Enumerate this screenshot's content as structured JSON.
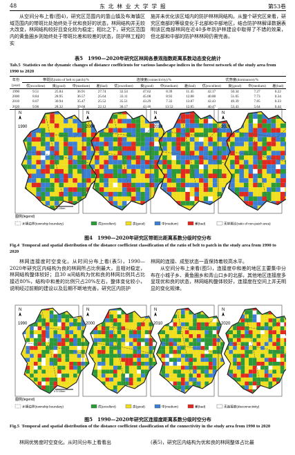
{
  "header": {
    "page": "48",
    "journal": "东 北 林 业 大 学 学 报",
    "volume": "第53卷"
  },
  "text1": {
    "left": "从空间分布上看(图4)，研究区范围内的靠山镇及布海镇区域范围内的带斑比处始终处于优和良好的状态，林网结构并无较大改变，林网结构较好且变化较为稳定；相比之下，研究区范围内的黄鱼圈乡则始终处于带斑比差和较差的状态，防护林工程的实",
    "right": "施并未优化该区域内的防护林林网结构。从整个研究区来看，研究区南部的等级变化于北部和中部地区，结合防护林解译数据表明该区南部林网在近40多年防护林建设中取得了不错的效果，但北部和中部的防护林林网仍需完善。"
  },
  "table": {
    "caption_cn": "表5　1990—2020年研究区林网各景观指数距离系数动态变化统计",
    "caption_en_label": "Tab.5",
    "caption_en": "Statistics on the dynamic changes of distance coefficients for various landscape indices in the forest network of the study area from 1990 to 2020",
    "year_header": [
      "年份",
      "(year)"
    ],
    "groups": [
      "带斑比(ratio of belt to patch)/%",
      "连接度(connectivity)/%",
      "优势度(dominance)/%"
    ],
    "subheaders": [
      "优(excellent)",
      "良(good)",
      "中(medium)",
      "差(bad)",
      "优(excellent)",
      "良(good)",
      "中(medium)",
      "差(bad)",
      "优(excellent)",
      "良(good)",
      "中(medium)",
      "差(bad)"
    ],
    "rows": [
      [
        "1990",
        "9.51",
        "25.84",
        "36.91",
        "27.74",
        "32.54",
        "47.62",
        "8.39",
        "11.45",
        "42.17",
        "50.34",
        "7.27",
        "0.22"
      ],
      [
        "2000",
        "8.84",
        "28.95",
        "36.57",
        "25.64",
        "33.11",
        "45.08",
        "8.93",
        "12.88",
        "40.88",
        "51.05",
        "7.73",
        "0.34"
      ],
      [
        "2010",
        "8.07",
        "30.94",
        "35.47",
        "25.52",
        "35.51",
        "43.29",
        "7.33",
        "13.87",
        "42.43",
        "49.39",
        "7.85",
        "0.33"
      ],
      [
        "2020",
        "9.96",
        "28.32",
        "39.60",
        "22.12",
        "30.17",
        "43.46",
        "13.52",
        "12.85",
        "40.47",
        "53.43",
        "5.64",
        "0.44"
      ]
    ]
  },
  "fig4": {
    "years": [
      "1990",
      "2000",
      "2010",
      "2020"
    ],
    "north": "N",
    "scale": "0  5  10km",
    "legend_title": "图例(legend)",
    "legend": [
      "乡镇边界(township boundary)",
      "优(excellent)",
      "良(good)",
      "中(medium)",
      "差(bad)",
      "无带斑比(ratio of non-patch area)"
    ],
    "caption_cn": "图4　1990—2020年研究区带斑比距离系数分级时空分布",
    "caption_en_label": "Fig.4",
    "caption_en": "Temporal and spatial distribution of the distance coefficient classification of the ratio of belt to patch in the study area from 1990 to 2020"
  },
  "text2": {
    "left": "林网连接度时空变化。从时间分布上看(表5)，1990—2020年研究区内结构为良的林网所占比例最大，且相对稳定，林网结构整体较好；且30 a间结构为优和良的林网比例共占比接近80%，结构中和差的比例只占20%左右，整体变化较小，说明经过前期的建设以及后期不断地完善，研究区内防护",
    "right1": "林网的连接、成型状态一直保持着较高水平。",
    "right2": "从空间分布上来看(图5)，连接度中和差的地区主要集中分布在小城子乡、黄鱼圈乡和青山口乡的北部，其他地区连接度多呈现优和良的状态，林网结构整体较好，连接度在空间上并无明显的变化规律。"
  },
  "fig5": {
    "years": [
      "1990",
      "2000",
      "2010",
      "2020"
    ],
    "north": "N",
    "scale": "0  5  10km",
    "legend_title": "图例(legend)",
    "legend": [
      "乡镇边界(township boundary)",
      "优(excellent)",
      "良(good)",
      "中(medium)",
      "差(bad)",
      "无连接度(disconnectivity)"
    ],
    "caption_cn": "图5　1990—2020年研究区连接度距离系数分级时空分布",
    "caption_en_label": "Fig.5",
    "caption_en": "Temporal and spatial distribution of the distance coefficient classification of the connectivity in the study area from 1990 to 2020"
  },
  "text3": {
    "left": "林网优势度时空变化。从时间分布上看看出",
    "right": "(表5)，研究区内结构为优和良的林网整体占比最"
  }
}
